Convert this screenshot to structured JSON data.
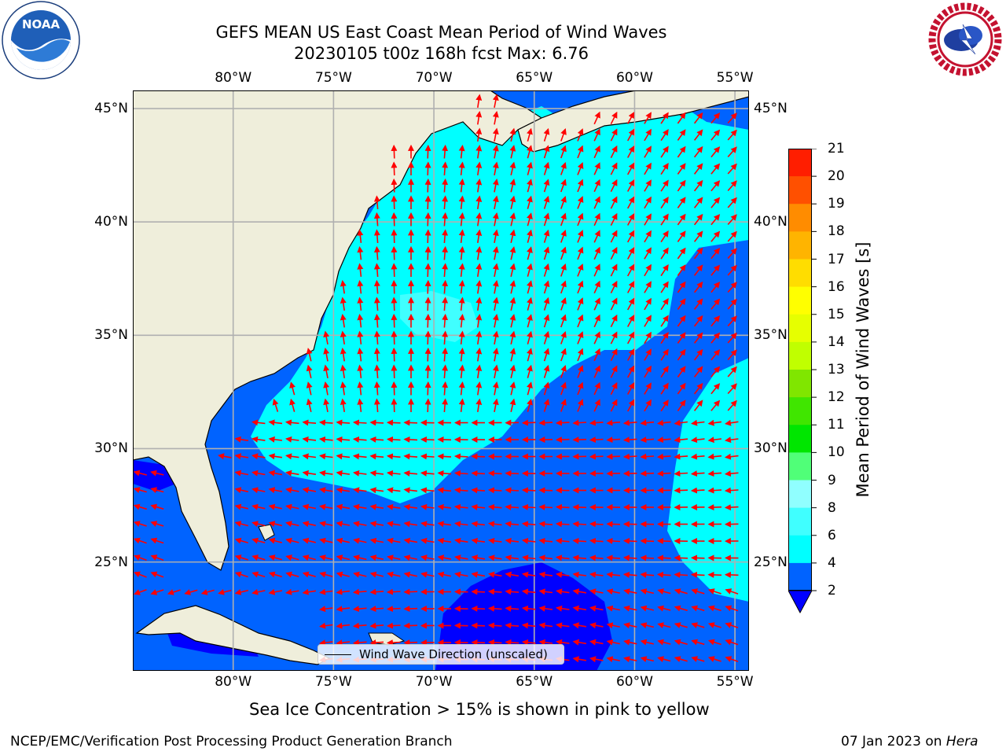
{
  "title": {
    "line1": "GEFS MEAN US East Coast Mean Period of Wind Waves",
    "line2": "20230105 t00z 168h fcst   Max: 6.76"
  },
  "logos": {
    "left": {
      "name": "noaa-logo",
      "text": "NOAA",
      "ring_text": "NATIONAL OCEANIC AND ATMOSPHERIC ADMINISTRATION · U.S. DEPARTMENT OF COMMERCE"
    },
    "right": {
      "name": "nws-logo",
      "ring_text": "NATIONAL WEATHER SERVICE"
    }
  },
  "map": {
    "lon_ticks": [
      "80°W",
      "75°W",
      "70°W",
      "65°W",
      "60°W",
      "55°W"
    ],
    "lat_ticks": [
      "45°N",
      "40°N",
      "35°N",
      "30°N",
      "25°N"
    ],
    "lon_values": [
      -80,
      -75,
      -70,
      -65,
      -60,
      -55
    ],
    "lat_values": [
      45,
      40,
      35,
      30,
      25
    ],
    "extent": {
      "lon": [
        -85,
        -54.3
      ],
      "lat": [
        20.2,
        45.8
      ]
    },
    "colors": {
      "land": "#efeedb",
      "coast": "#000000",
      "grid": "#b0b0b0",
      "arrows": "#ff0000"
    },
    "legend": "Wind Wave Direction (unscaled)"
  },
  "colorbar": {
    "label": "Mean Period of Wind Waves [s]",
    "ticks": [
      "2",
      "4",
      "6",
      "8",
      "9",
      "10",
      "11",
      "12",
      "13",
      "14",
      "15",
      "16",
      "17",
      "18",
      "19",
      "20",
      "21"
    ],
    "colors": [
      "#0063ff",
      "#00ffff",
      "#40ffff",
      "#90ffff",
      "#50ff78",
      "#00e600",
      "#40e600",
      "#80e600",
      "#c0ff00",
      "#e6ff00",
      "#ffff00",
      "#ffdd00",
      "#ffb400",
      "#ff8c00",
      "#ff5000",
      "#ff1e00"
    ],
    "extend_color": "#0000ff"
  },
  "note": "Sea Ice Concentration > 15% is shown in pink to yellow",
  "footer": {
    "left": "NCEP/EMC/Verification Post Processing Product Generation Branch",
    "right_prefix": "07 Jan 2023 on ",
    "right_italic": "Hera"
  }
}
